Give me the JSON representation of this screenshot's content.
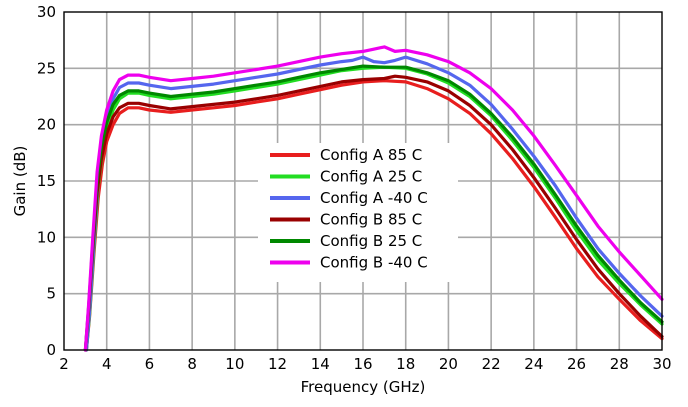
{
  "chart_data": {
    "type": "line",
    "xlabel": "Frequency (GHz)",
    "ylabel": "Gain (dB)",
    "xlim": [
      2,
      30
    ],
    "ylim": [
      0,
      30
    ],
    "xticks": [
      2,
      4,
      6,
      8,
      10,
      12,
      14,
      16,
      18,
      20,
      22,
      24,
      26,
      28,
      30
    ],
    "yticks": [
      0,
      5,
      10,
      15,
      20,
      25,
      30
    ],
    "grid": true,
    "legend_position": "center",
    "series": [
      {
        "name": "Config A 85 C",
        "color": "#e81e1e",
        "x": [
          3.05,
          3.2,
          3.4,
          3.6,
          3.8,
          4.0,
          4.3,
          4.6,
          5.0,
          5.5,
          6.0,
          7.0,
          8.0,
          9.0,
          10.0,
          11.0,
          12.0,
          13.0,
          14.0,
          15.0,
          16.0,
          17.0,
          18.0,
          19.0,
          20.0,
          21.0,
          22.0,
          23.0,
          24.0,
          25.0,
          26.0,
          27.0,
          28.0,
          29.0,
          30.0
        ],
        "values": [
          0.0,
          3.0,
          8.5,
          13.5,
          16.5,
          18.5,
          20.0,
          21.0,
          21.5,
          21.5,
          21.3,
          21.1,
          21.3,
          21.5,
          21.7,
          22.0,
          22.3,
          22.7,
          23.1,
          23.5,
          23.8,
          23.9,
          23.8,
          23.2,
          22.3,
          21.0,
          19.2,
          17.0,
          14.5,
          11.8,
          9.0,
          6.5,
          4.5,
          2.6,
          1.0
        ]
      },
      {
        "name": "Config A 25 C",
        "color": "#22dd22",
        "x": [
          3.05,
          3.2,
          3.4,
          3.6,
          3.8,
          4.0,
          4.3,
          4.6,
          5.0,
          5.5,
          6.0,
          7.0,
          8.0,
          9.0,
          10.0,
          11.0,
          12.0,
          13.0,
          14.0,
          15.0,
          16.0,
          17.0,
          18.0,
          19.0,
          20.0,
          21.0,
          22.0,
          23.0,
          24.0,
          25.0,
          26.0,
          27.0,
          28.0,
          29.0,
          30.0
        ],
        "values": [
          0.0,
          3.2,
          9.0,
          14.5,
          17.5,
          19.6,
          21.3,
          22.3,
          22.8,
          22.8,
          22.6,
          22.3,
          22.5,
          22.7,
          23.0,
          23.3,
          23.6,
          24.0,
          24.4,
          24.8,
          25.0,
          25.1,
          25.0,
          24.5,
          23.7,
          22.5,
          20.8,
          18.6,
          16.2,
          13.5,
          10.6,
          8.0,
          5.9,
          4.0,
          2.3
        ]
      },
      {
        "name": "Config A -40 C",
        "color": "#5566ee",
        "x": [
          3.05,
          3.2,
          3.4,
          3.6,
          3.8,
          4.0,
          4.3,
          4.6,
          5.0,
          5.5,
          6.0,
          7.0,
          8.0,
          9.0,
          10.0,
          11.0,
          12.0,
          13.0,
          14.0,
          15.0,
          15.5,
          16.0,
          16.5,
          17.0,
          17.5,
          18.0,
          19.0,
          20.0,
          21.0,
          22.0,
          23.0,
          24.0,
          25.0,
          26.0,
          27.0,
          28.0,
          29.0,
          30.0
        ],
        "values": [
          0.0,
          3.5,
          9.5,
          15.0,
          18.3,
          20.5,
          22.3,
          23.3,
          23.7,
          23.7,
          23.5,
          23.2,
          23.4,
          23.6,
          23.9,
          24.2,
          24.5,
          24.9,
          25.3,
          25.6,
          25.7,
          26.0,
          25.6,
          25.5,
          25.7,
          26.0,
          25.4,
          24.6,
          23.5,
          21.8,
          19.6,
          17.2,
          14.6,
          11.7,
          9.0,
          6.8,
          4.8,
          3.0
        ]
      },
      {
        "name": "Config B 85 C",
        "color": "#990000",
        "x": [
          3.0,
          3.15,
          3.35,
          3.55,
          3.75,
          4.0,
          4.3,
          4.6,
          5.0,
          5.5,
          6.0,
          7.0,
          8.0,
          9.0,
          10.0,
          11.0,
          12.0,
          13.0,
          14.0,
          15.0,
          16.0,
          17.0,
          17.5,
          18.0,
          19.0,
          20.0,
          21.0,
          22.0,
          23.0,
          24.0,
          25.0,
          26.0,
          27.0,
          28.0,
          29.0,
          30.0
        ],
        "values": [
          0.0,
          3.5,
          9.0,
          14.0,
          17.0,
          19.2,
          20.7,
          21.5,
          21.9,
          21.9,
          21.7,
          21.4,
          21.6,
          21.8,
          22.0,
          22.3,
          22.6,
          23.0,
          23.4,
          23.8,
          24.0,
          24.1,
          24.3,
          24.2,
          23.8,
          23.0,
          21.7,
          20.0,
          17.8,
          15.3,
          12.6,
          9.8,
          7.2,
          5.0,
          3.0,
          1.2
        ]
      },
      {
        "name": "Config B 25 C",
        "color": "#008800",
        "x": [
          3.0,
          3.15,
          3.35,
          3.55,
          3.75,
          4.0,
          4.3,
          4.6,
          5.0,
          5.5,
          6.0,
          7.0,
          8.0,
          9.0,
          10.0,
          11.0,
          12.0,
          13.0,
          14.0,
          15.0,
          16.0,
          17.0,
          18.0,
          19.0,
          20.0,
          21.0,
          22.0,
          23.0,
          24.0,
          25.0,
          26.0,
          27.0,
          28.0,
          29.0,
          30.0
        ],
        "values": [
          0.0,
          3.8,
          9.5,
          15.0,
          18.0,
          20.2,
          21.8,
          22.6,
          23.0,
          23.0,
          22.8,
          22.5,
          22.7,
          22.9,
          23.2,
          23.5,
          23.8,
          24.2,
          24.6,
          24.9,
          25.2,
          25.1,
          25.1,
          24.6,
          23.9,
          22.7,
          21.0,
          18.9,
          16.5,
          13.8,
          11.0,
          8.4,
          6.2,
          4.2,
          2.5
        ]
      },
      {
        "name": "Config B -40 C",
        "color": "#ee00ee",
        "x": [
          3.0,
          3.15,
          3.35,
          3.55,
          3.75,
          4.0,
          4.3,
          4.6,
          5.0,
          5.5,
          6.0,
          7.0,
          8.0,
          9.0,
          10.0,
          11.0,
          12.0,
          13.0,
          14.0,
          15.0,
          16.0,
          16.5,
          17.0,
          17.5,
          18.0,
          19.0,
          20.0,
          21.0,
          22.0,
          23.0,
          24.0,
          25.0,
          26.0,
          27.0,
          28.0,
          29.0,
          30.0
        ],
        "values": [
          0.0,
          4.0,
          10.0,
          15.8,
          19.0,
          21.3,
          23.0,
          24.0,
          24.4,
          24.4,
          24.2,
          23.9,
          24.1,
          24.3,
          24.6,
          24.9,
          25.2,
          25.6,
          26.0,
          26.3,
          26.5,
          26.7,
          26.9,
          26.5,
          26.6,
          26.2,
          25.6,
          24.6,
          23.2,
          21.3,
          19.0,
          16.4,
          13.7,
          11.0,
          8.7,
          6.6,
          4.5
        ]
      }
    ]
  }
}
